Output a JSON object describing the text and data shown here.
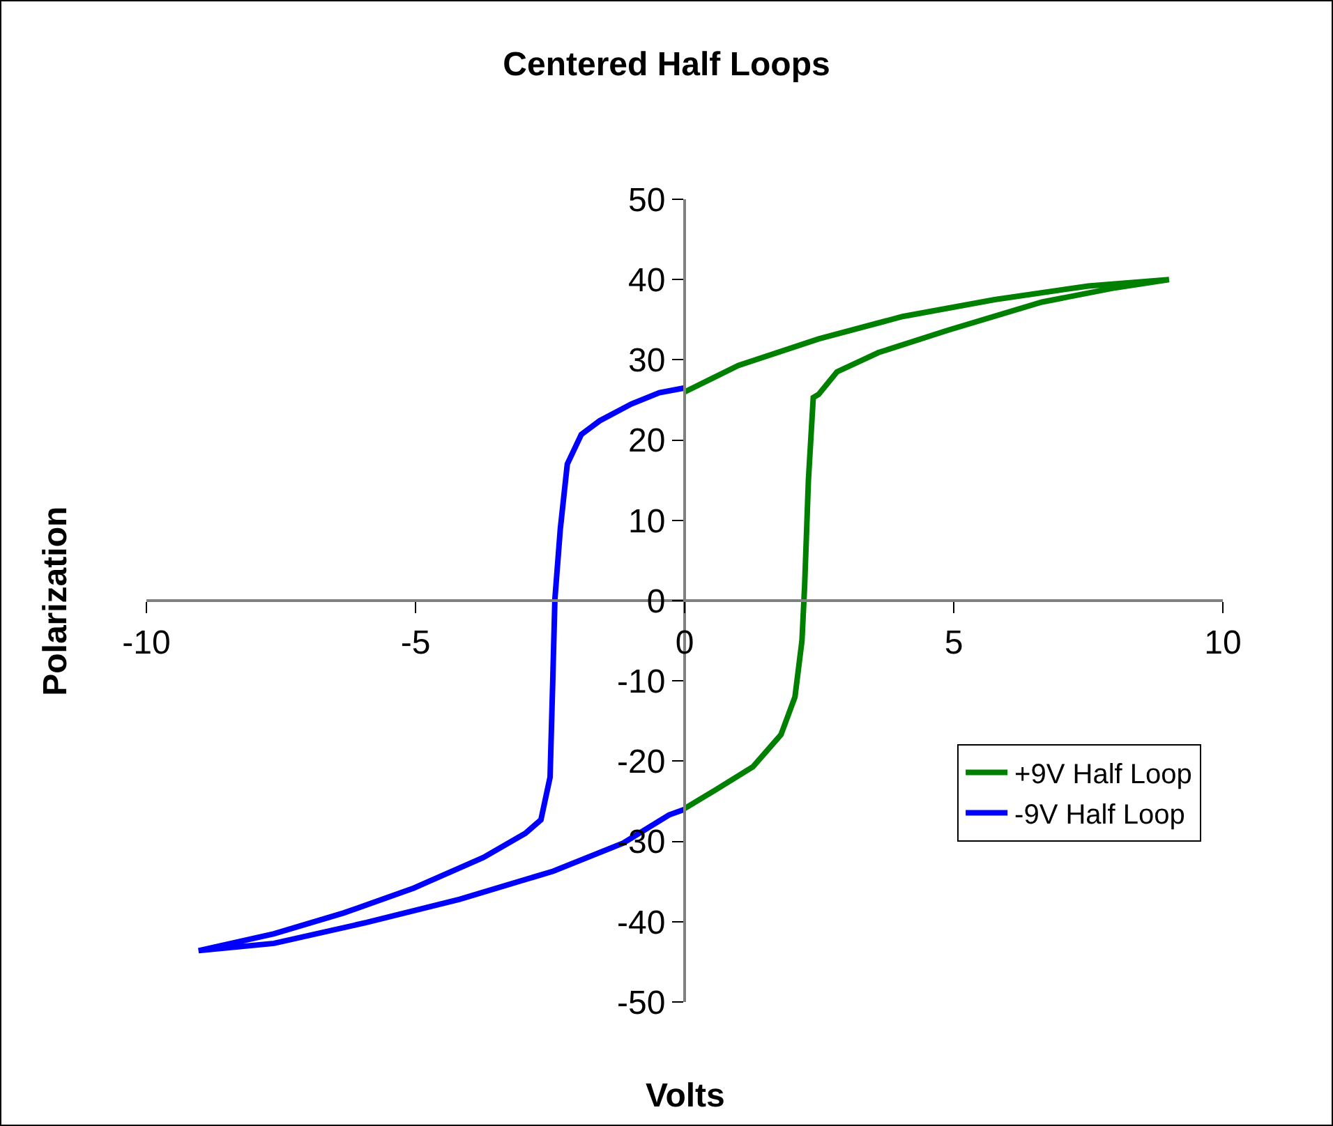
{
  "chart_data": {
    "type": "line",
    "title": "Centered Half Loops",
    "xlabel": "Volts",
    "ylabel": "Polarization",
    "xlim": [
      -10,
      10
    ],
    "xticks": [
      -10,
      -5,
      0,
      5,
      10
    ],
    "ylim": [
      -50,
      50
    ],
    "yticks": [
      -50,
      -40,
      -30,
      -20,
      -10,
      0,
      10,
      20,
      30,
      40,
      50
    ],
    "grid": false,
    "legend": "bottom right",
    "marker": "none",
    "line_style": "solid",
    "series": [
      {
        "name": "+9V Half Loop",
        "color": "#008000",
        "x": [
          0,
          0.57,
          1.27,
          1.79,
          2.05,
          2.18,
          2.23,
          2.3,
          2.39,
          2.49,
          2.83,
          3.6,
          4.9,
          6.64,
          7.94,
          9,
          7.5,
          5.76,
          4.05,
          2.49,
          1.0,
          0
        ],
        "values": [
          -25.9,
          -23.6,
          -20.7,
          -16.7,
          -12,
          -5,
          1.9,
          15,
          25.3,
          25.7,
          28.5,
          30.9,
          33.7,
          37.2,
          38.9,
          40,
          39.2,
          37.5,
          35.4,
          32.6,
          29.3,
          26
        ]
      },
      {
        "name": "-9V Half Loop",
        "color": "#0000ff",
        "x": [
          0,
          -0.47,
          -0.99,
          -1.58,
          -1.92,
          -2.18,
          -2.31,
          -2.41,
          -2.45,
          -2.5,
          -2.67,
          -2.96,
          -3.74,
          -5.03,
          -6.33,
          -7.63,
          -9.03,
          -7.63,
          -5.91,
          -4.18,
          -2.44,
          -1.14,
          -0.29,
          0
        ],
        "values": [
          26.5,
          25.9,
          24.5,
          22.4,
          20.7,
          17,
          8.9,
          0.2,
          -10,
          -22,
          -27.3,
          -29,
          -32,
          -35.8,
          -38.9,
          -41.5,
          -43.6,
          -42.7,
          -40.1,
          -37.2,
          -33.7,
          -30.2,
          -26.7,
          -26
        ]
      }
    ]
  }
}
